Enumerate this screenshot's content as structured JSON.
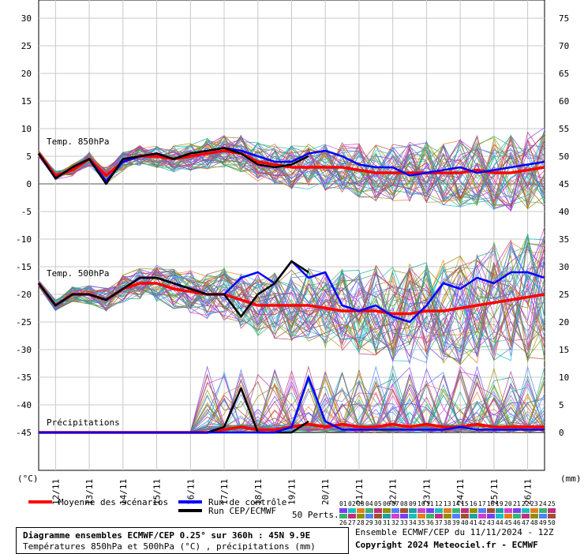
{
  "chart_data": {
    "type": "line",
    "title": "Diagramme ensembles ECMWF/CEP 0.25° sur 360h : 45N 9.9E",
    "subtitle": "Températures 850hPa et 500hPa (°C) , précipitations (mm)",
    "left_unit": "(°C)",
    "right_unit": "(mm)",
    "left_ticks": [
      30,
      25,
      20,
      15,
      10,
      5,
      0,
      -5,
      -10,
      -15,
      -20,
      -25,
      -30,
      -35,
      -40,
      -45
    ],
    "right_ticks": [
      75,
      70,
      65,
      60,
      55,
      50,
      45,
      40,
      35,
      30,
      25,
      20,
      15,
      10,
      5,
      0
    ],
    "ylim": [
      -50,
      30
    ],
    "x_ticks": [
      "12/11",
      "13/11",
      "14/11",
      "15/11",
      "16/11",
      "17/11",
      "18/11",
      "19/11",
      "20/11",
      "21/11",
      "22/11",
      "23/11",
      "24/11",
      "25/11",
      "26/11"
    ],
    "panel_labels": [
      "Temp. 850hPa",
      "Temp. 500hPa",
      "Précipitations"
    ],
    "x_hours": [
      0,
      12,
      24,
      36,
      48,
      60,
      72,
      84,
      96,
      108,
      120,
      132,
      144,
      156,
      168,
      180,
      192,
      204,
      216,
      228,
      240,
      252,
      264,
      276,
      288,
      300,
      312,
      324,
      336,
      348,
      360
    ],
    "series": [
      {
        "name": "Moyenne des scénarios",
        "color": "#ff0000",
        "group": "t850",
        "values": [
          5.5,
          1.5,
          2.5,
          4.5,
          1.5,
          4,
          5,
          5,
          4.5,
          5,
          5.5,
          6,
          5.5,
          4,
          3.5,
          3,
          3,
          3,
          3,
          2.5,
          2,
          2,
          2,
          2,
          2,
          2,
          2.5,
          2,
          2,
          2.5,
          3
        ]
      },
      {
        "name": "Run de contrôle",
        "color": "#0000ff",
        "group": "t850",
        "values": [
          5.5,
          1,
          3,
          4.5,
          0.5,
          4,
          5,
          5.5,
          4.5,
          5.5,
          6,
          6.5,
          6,
          5,
          4,
          4,
          5.5,
          6,
          5,
          3.5,
          3,
          3,
          1.5,
          2,
          2.5,
          3,
          2,
          2.5,
          3,
          3.5,
          4
        ]
      },
      {
        "name": "Run CEP/ECMWF",
        "color": "#000000",
        "group": "t850",
        "values": [
          5.5,
          1,
          3,
          4.5,
          0,
          4.5,
          5,
          5.5,
          4.5,
          5.5,
          6,
          6.5,
          5.5,
          3.5,
          3,
          3.5,
          5
        ]
      },
      {
        "name": "Moyenne des scénarios",
        "color": "#ff0000",
        "group": "t500",
        "values": [
          -18,
          -22,
          -20,
          -20,
          -21,
          -19,
          -18,
          -18,
          -19,
          -19.5,
          -20,
          -20,
          -21,
          -22,
          -22,
          -22,
          -22,
          -22.5,
          -23,
          -23,
          -23,
          -23.5,
          -23.5,
          -23,
          -23,
          -22.5,
          -22,
          -21.5,
          -21,
          -20.5,
          -20
        ]
      },
      {
        "name": "Run de contrôle",
        "color": "#0000ff",
        "group": "t500",
        "values": [
          -18,
          -22,
          -20,
          -20,
          -21,
          -19,
          -17,
          -17,
          -18,
          -19,
          -20,
          -20,
          -17,
          -16,
          -18,
          -14,
          -17,
          -16,
          -22,
          -23,
          -22,
          -24,
          -25,
          -22,
          -18,
          -19,
          -17,
          -18,
          -16,
          -16,
          -17
        ]
      },
      {
        "name": "Run CEP/ECMWF",
        "color": "#000000",
        "group": "t500",
        "values": [
          -18,
          -22,
          -20,
          -20,
          -21,
          -19,
          -17,
          -17,
          -18,
          -19,
          -20,
          -20,
          -24,
          -20,
          -18,
          -14,
          -16
        ]
      },
      {
        "name": "Moyenne des scénarios",
        "color": "#ff0000",
        "group": "precip",
        "values": [
          0,
          0,
          0,
          0,
          0,
          0,
          0,
          0,
          0,
          0,
          0,
          0.5,
          1,
          0.5,
          0.5,
          1,
          1.5,
          1,
          1.5,
          1,
          1,
          1.5,
          1,
          1.5,
          1,
          1,
          1.5,
          1,
          1,
          1,
          1
        ]
      },
      {
        "name": "Run CEP/ECMWF",
        "color": "#000000",
        "group": "precip",
        "values": [
          0,
          0,
          0,
          0,
          0,
          0,
          0,
          0,
          0,
          0,
          0,
          1,
          8,
          0,
          0,
          0,
          2
        ]
      },
      {
        "name": "Run de contrôle",
        "color": "#0000ff",
        "group": "precip",
        "values": [
          0,
          0,
          0,
          0,
          0,
          0,
          0,
          0,
          0,
          0,
          0,
          0,
          0,
          0,
          0,
          1,
          10,
          2,
          0.5,
          0.5,
          0.5,
          0.5,
          0.5,
          0.5,
          0.5,
          1,
          0.5,
          0.5,
          0.5,
          0.5,
          0.5
        ]
      }
    ],
    "members": {
      "count": 50,
      "colors": [
        "#7b3ff2",
        "#19c0c0",
        "#e08020",
        "#3cb371",
        "#c03080",
        "#909000",
        "#5080ff",
        "#a05030",
        "#20a0a0",
        "#d040d0"
      ]
    }
  },
  "legend": {
    "mean": "Moyenne des scénarios",
    "control": "Run de contrôle",
    "oper": "Run CEP/ECMWF",
    "perts": "50 Perts."
  },
  "footer": {
    "title": "Diagramme ensembles ECMWF/CEP 0.25° sur 360h : 45N 9.9E",
    "subtitle": "Températures 850hPa et 500hPa (°C) , précipitations (mm)",
    "run": "Ensemble ECMWF/CEP du 11/11/2024 - 12Z",
    "copyright": "Copyright 2024 Meteociel.fr - ECMWF"
  },
  "member_numbers_top": [
    "01",
    "02",
    "03",
    "04",
    "05",
    "06",
    "07",
    "08",
    "09",
    "10",
    "11",
    "12",
    "13",
    "14",
    "15",
    "16",
    "17",
    "18",
    "19",
    "20",
    "21",
    "22",
    "23",
    "24",
    "25"
  ],
  "member_numbers_bottom": [
    "26",
    "27",
    "28",
    "29",
    "30",
    "31",
    "32",
    "33",
    "34",
    "35",
    "36",
    "37",
    "38",
    "39",
    "40",
    "41",
    "42",
    "43",
    "44",
    "45",
    "46",
    "47",
    "48",
    "49",
    "50"
  ]
}
